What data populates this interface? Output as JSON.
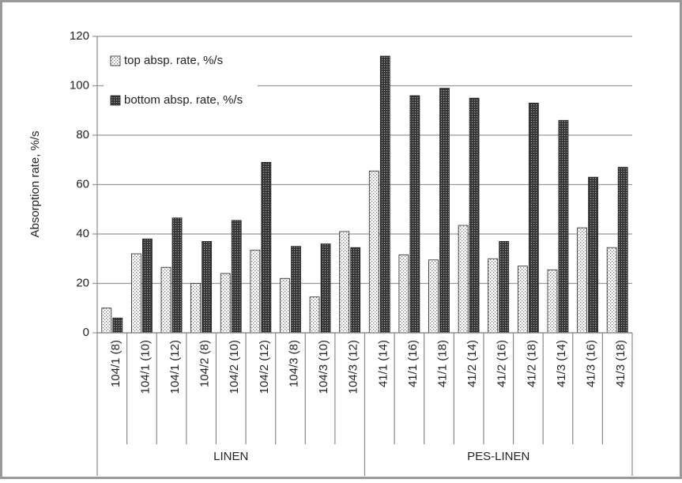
{
  "chart_data": {
    "type": "bar",
    "ylabel": "Absorption rate, %/s",
    "groups": [
      {
        "label": "LINEN",
        "categories": [
          "104/1 (8)",
          "104/1 (10)",
          "104/1 (12)",
          "104/2 (8)",
          "104/2 (10)",
          "104/2 (12)",
          "104/3 (8)",
          "104/3 (10)",
          "104/3 (12)"
        ]
      },
      {
        "label": "PES-LINEN",
        "categories": [
          "41/1 (14)",
          "41/1 (16)",
          "41/1 (18)",
          "41/2 (14)",
          "41/2 (16)",
          "41/2 (18)",
          "41/3 (14)",
          "41/3 (16)",
          "41/3 (18)"
        ]
      }
    ],
    "series": [
      {
        "name": "top absp. rate, %/s",
        "color": "#ffffff",
        "values": [
          10,
          32,
          26.5,
          20,
          24,
          33.5,
          22,
          14.5,
          41,
          65.5,
          31.5,
          29.5,
          43.5,
          30,
          27,
          25.5,
          42.5,
          34.5
        ]
      },
      {
        "name": "bottom absp. rate, %/s",
        "color": "#333333",
        "values": [
          6,
          38,
          46.5,
          37,
          45.5,
          69,
          35,
          36,
          34.5,
          112,
          96,
          99,
          95,
          37,
          93,
          86,
          63,
          67
        ]
      }
    ],
    "ylim": [
      0,
      120
    ],
    "yticks": [
      0,
      20,
      40,
      60,
      80,
      100,
      120
    ],
    "grid": true,
    "legend": "upper left"
  }
}
